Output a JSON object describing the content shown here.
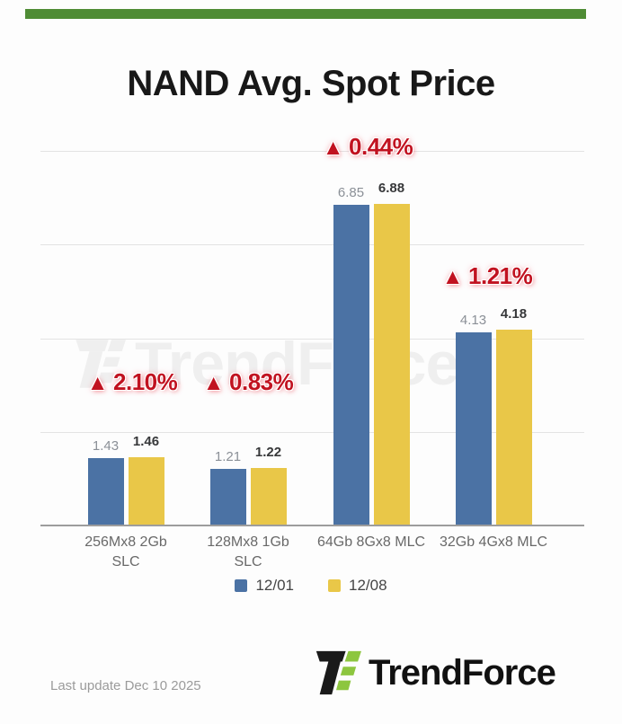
{
  "header": {
    "title": "NAND Avg. Spot Price",
    "accent_color": "#4f8c35"
  },
  "chart_data": {
    "type": "bar",
    "title": "NAND Avg. Spot Price",
    "categories": [
      "256Mx8 2Gb SLC",
      "128Mx8 1Gb SLC",
      "64Gb 8Gx8 MLC",
      "32Gb 4Gx8 MLC"
    ],
    "series": [
      {
        "name": "12/01",
        "color": "#4b72a4",
        "values": [
          1.43,
          1.21,
          6.85,
          4.13
        ]
      },
      {
        "name": "12/08",
        "color": "#e9c748",
        "values": [
          1.46,
          1.22,
          6.88,
          4.18
        ]
      }
    ],
    "change_labels": [
      {
        "triangle": "▲",
        "value": "2.10%"
      },
      {
        "triangle": "▲",
        "value": "0.83%"
      },
      {
        "triangle": "▲",
        "value": "0.44%"
      },
      {
        "triangle": "▲",
        "value": "1.21%"
      }
    ],
    "change_color": "#c11220",
    "ylim": [
      0,
      8
    ],
    "grid": "horizontal",
    "gridline_values": [
      2,
      4,
      6,
      8
    ],
    "legend_position": "bottom"
  },
  "legend": {
    "items": [
      {
        "label": "12/01",
        "color": "#4b72a4"
      },
      {
        "label": "12/08",
        "color": "#e9c748"
      }
    ]
  },
  "watermark": {
    "text": "TrendForce"
  },
  "footer": {
    "last_update": "Last update Dec 10 2025",
    "brand": "TrendForce",
    "brand_green": "#8dc63f",
    "brand_black": "#1a1a1a"
  }
}
